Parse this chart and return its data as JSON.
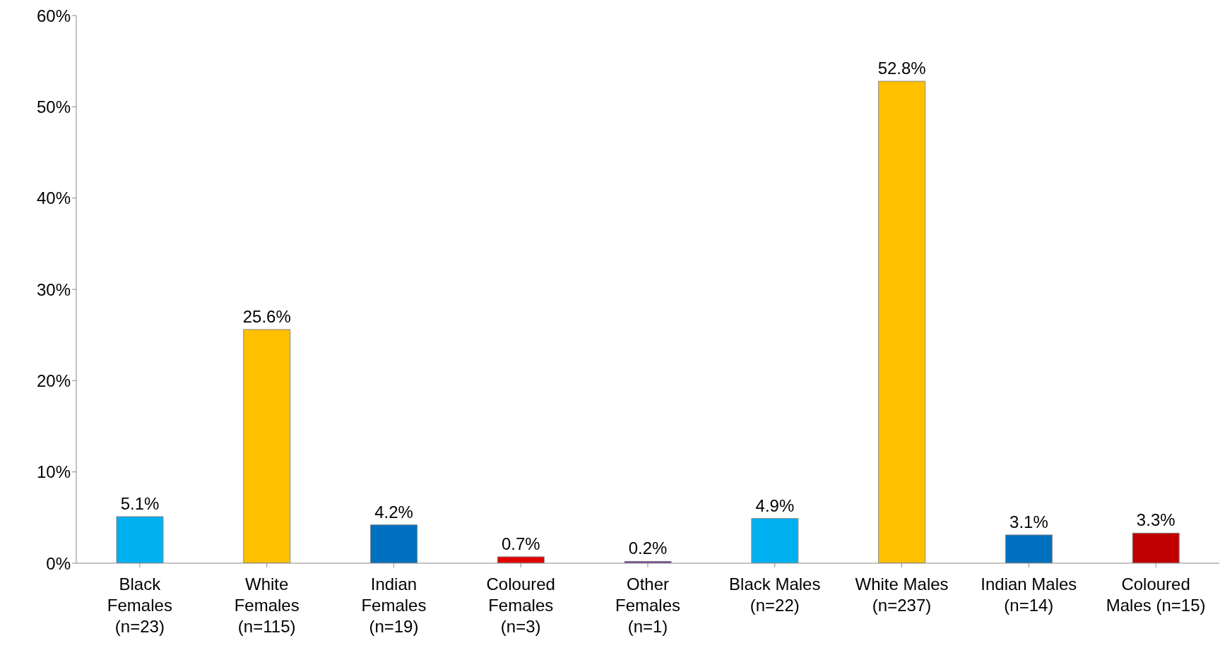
{
  "chart_data": {
    "type": "bar",
    "categories": [
      "Black Females (n=23)",
      "White Females (n=115)",
      "Indian Females (n=19)",
      "Coloured Females (n=3)",
      "Other Females (n=1)",
      "Black Males (n=22)",
      "White Males (n=237)",
      "Indian Males (n=14)",
      "Coloured Males (n=15)"
    ],
    "values": [
      5.1,
      25.6,
      4.2,
      0.7,
      0.2,
      4.9,
      52.8,
      3.1,
      3.3
    ],
    "colors": [
      "#00b0f0",
      "#ffc000",
      "#0070c0",
      "#e00000",
      "#7030a0",
      "#00b0f0",
      "#ffc000",
      "#0070c0",
      "#c00000"
    ],
    "value_labels": [
      "5.1%",
      "25.6%",
      "4.2%",
      "0.7%",
      "0.2%",
      "4.9%",
      "52.8%",
      "3.1%",
      "3.3%"
    ],
    "ylim": [
      0,
      60
    ],
    "yticks": [
      {
        "value": 0,
        "label": "0%"
      },
      {
        "value": 10,
        "label": "10%"
      },
      {
        "value": 20,
        "label": "20%"
      },
      {
        "value": 30,
        "label": "30%"
      },
      {
        "value": 40,
        "label": "40%"
      },
      {
        "value": 50,
        "label": "50%"
      },
      {
        "value": 60,
        "label": "60%"
      }
    ],
    "grid": false,
    "legend": false
  }
}
